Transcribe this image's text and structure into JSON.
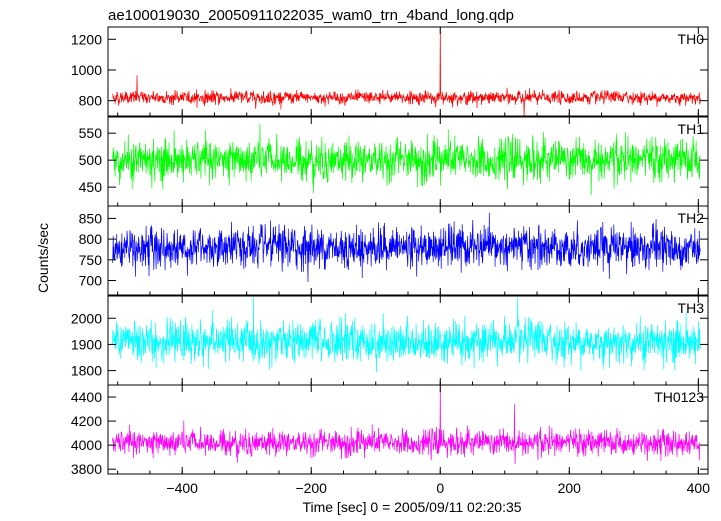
{
  "chart_data": {
    "type": "line",
    "title": "ae100019030_20050911022035_wam0_trn_4band_long.qdp",
    "xlabel": "Time [sec] 0 = 2005/09/11 02:20:35",
    "ylabel": "Counts/sec",
    "xlim": [
      -515,
      415
    ],
    "x_ticks": [
      -400,
      -200,
      0,
      200,
      400
    ],
    "x_tick_labels": [
      "−400",
      "−200",
      "0",
      "200",
      "400"
    ],
    "grid": false,
    "sample_step_sec": 0.5,
    "panels": [
      {
        "label": "TH0",
        "color": "#ff0000",
        "ylim": [
          700,
          1280
        ],
        "yticks": [
          800,
          1000,
          1200
        ],
        "mean": 820,
        "noise": 24,
        "spikes": [
          {
            "x": -470,
            "y": 965
          },
          {
            "x": 0,
            "y": 1280
          },
          {
            "x": 130,
            "y": 690
          }
        ]
      },
      {
        "label": "TH1",
        "color": "#00ff00",
        "ylim": [
          415,
          580
        ],
        "yticks": [
          450,
          500,
          550
        ],
        "mean": 500,
        "noise": 22,
        "spikes": []
      },
      {
        "label": "TH2",
        "color": "#0000ff",
        "ylim": [
          665,
          880
        ],
        "yticks": [
          700,
          750,
          800,
          850
        ],
        "mean": 780,
        "noise": 28,
        "spikes": []
      },
      {
        "label": "TH3",
        "color": "#00ffff",
        "ylim": [
          1745,
          2085
        ],
        "yticks": [
          1800,
          1900,
          2000
        ],
        "mean": 1910,
        "noise": 45,
        "spikes": [
          {
            "x": 120,
            "y": 2080
          }
        ]
      },
      {
        "label": "TH0123",
        "color": "#ff00ff",
        "ylim": [
          3760,
          4500
        ],
        "yticks": [
          3800,
          4000,
          4200,
          4400
        ],
        "mean": 4020,
        "noise": 60,
        "spikes": [
          {
            "x": 0,
            "y": 4500
          },
          {
            "x": 115,
            "y": 4340
          }
        ]
      }
    ]
  }
}
